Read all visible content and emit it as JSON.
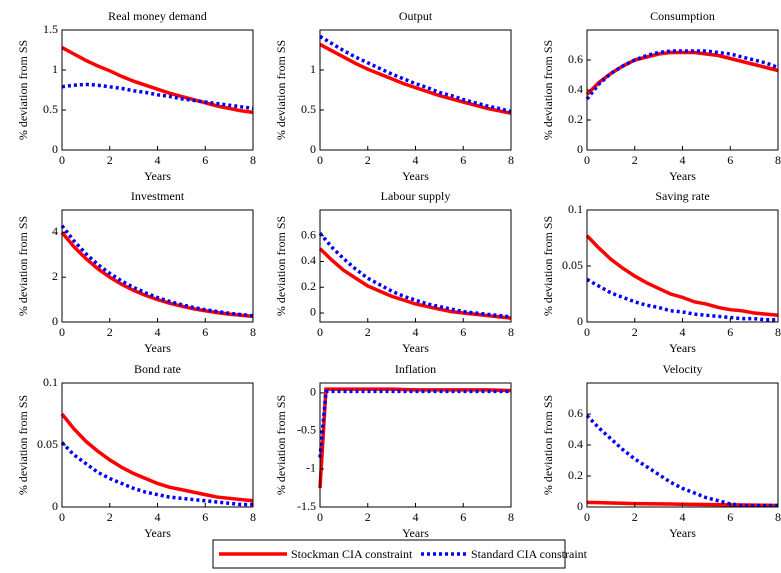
{
  "chart_data": [
    {
      "type": "line",
      "title": "Real money demand",
      "xlabel": "Years",
      "ylabel": "% deviation from SS",
      "x": [
        0,
        0.5,
        1,
        1.5,
        2,
        2.5,
        3,
        3.5,
        4,
        4.5,
        5,
        5.5,
        6,
        6.5,
        7,
        7.5,
        8
      ],
      "xlim": [
        0,
        8
      ],
      "xticks": [
        0,
        2,
        4,
        6,
        8
      ],
      "ylim": [
        0,
        1.5
      ],
      "yticks": [
        0,
        0.5,
        1,
        1.5
      ],
      "series": [
        {
          "name": "Stockman CIA constraint",
          "color": "#ff0000",
          "values": [
            1.28,
            1.2,
            1.12,
            1.05,
            0.99,
            0.92,
            0.86,
            0.81,
            0.76,
            0.71,
            0.67,
            0.63,
            0.59,
            0.55,
            0.52,
            0.49,
            0.47
          ]
        },
        {
          "name": "Standard CIA constraint",
          "color": "#0000ff",
          "values": [
            0.79,
            0.81,
            0.82,
            0.81,
            0.79,
            0.77,
            0.74,
            0.72,
            0.69,
            0.67,
            0.64,
            0.62,
            0.6,
            0.58,
            0.56,
            0.54,
            0.52
          ]
        }
      ]
    },
    {
      "type": "line",
      "title": "Output",
      "xlabel": "Years",
      "ylabel": "% deviation from SS",
      "x": [
        0,
        0.5,
        1,
        1.5,
        2,
        2.5,
        3,
        3.5,
        4,
        4.5,
        5,
        5.5,
        6,
        6.5,
        7,
        7.5,
        8
      ],
      "xlim": [
        0,
        8
      ],
      "xticks": [
        0,
        2,
        4,
        6,
        8
      ],
      "ylim": [
        0,
        1.5
      ],
      "yticks": [
        0,
        0.5,
        1
      ],
      "series": [
        {
          "color": "#ff0000",
          "values": [
            1.32,
            1.24,
            1.16,
            1.08,
            1.01,
            0.95,
            0.89,
            0.83,
            0.78,
            0.73,
            0.68,
            0.64,
            0.6,
            0.56,
            0.52,
            0.49,
            0.46
          ]
        },
        {
          "color": "#0000ff",
          "values": [
            1.42,
            1.33,
            1.24,
            1.16,
            1.09,
            1.02,
            0.95,
            0.89,
            0.83,
            0.78,
            0.72,
            0.68,
            0.63,
            0.59,
            0.55,
            0.52,
            0.48
          ]
        }
      ]
    },
    {
      "type": "line",
      "title": "Consumption",
      "xlabel": "Years",
      "ylabel": "% deviation from SS",
      "x": [
        0,
        0.5,
        1,
        1.5,
        2,
        2.5,
        3,
        3.5,
        4,
        4.5,
        5,
        5.5,
        6,
        6.5,
        7,
        7.5,
        8
      ],
      "xlim": [
        0,
        8
      ],
      "xticks": [
        0,
        2,
        4,
        6,
        8
      ],
      "ylim": [
        0,
        0.8
      ],
      "yticks": [
        0,
        0.2,
        0.4,
        0.6
      ],
      "series": [
        {
          "color": "#ff0000",
          "values": [
            0.37,
            0.45,
            0.51,
            0.56,
            0.6,
            0.62,
            0.64,
            0.65,
            0.65,
            0.65,
            0.64,
            0.63,
            0.61,
            0.59,
            0.57,
            0.55,
            0.53
          ]
        },
        {
          "color": "#0000ff",
          "values": [
            0.34,
            0.44,
            0.51,
            0.56,
            0.6,
            0.63,
            0.65,
            0.66,
            0.66,
            0.66,
            0.66,
            0.65,
            0.64,
            0.62,
            0.6,
            0.58,
            0.55
          ]
        }
      ]
    },
    {
      "type": "line",
      "title": "Investment",
      "xlabel": "Years",
      "ylabel": "% deviation from SS",
      "x": [
        0,
        0.5,
        1,
        1.5,
        2,
        2.5,
        3,
        3.5,
        4,
        4.5,
        5,
        5.5,
        6,
        6.5,
        7,
        7.5,
        8
      ],
      "xlim": [
        0,
        8
      ],
      "xticks": [
        0,
        2,
        4,
        6,
        8
      ],
      "ylim": [
        0,
        5
      ],
      "yticks": [
        0,
        2,
        4
      ],
      "series": [
        {
          "color": "#ff0000",
          "values": [
            4.0,
            3.36,
            2.83,
            2.38,
            2.0,
            1.68,
            1.41,
            1.19,
            1.0,
            0.84,
            0.71,
            0.59,
            0.5,
            0.42,
            0.35,
            0.3,
            0.25
          ]
        },
        {
          "color": "#0000ff",
          "values": [
            4.3,
            3.62,
            3.05,
            2.57,
            2.17,
            1.83,
            1.54,
            1.3,
            1.09,
            0.92,
            0.78,
            0.65,
            0.55,
            0.47,
            0.39,
            0.33,
            0.28
          ]
        }
      ]
    },
    {
      "type": "line",
      "title": "Labour supply",
      "xlabel": "Years",
      "ylabel": "% deviation from SS",
      "x": [
        0,
        0.5,
        1,
        1.5,
        2,
        2.5,
        3,
        3.5,
        4,
        4.5,
        5,
        5.5,
        6,
        6.5,
        7,
        7.5,
        8
      ],
      "xlim": [
        0,
        8
      ],
      "xticks": [
        0,
        2,
        4,
        6,
        8
      ],
      "ylim": [
        -0.07,
        0.8
      ],
      "yticks": [
        0,
        0.2,
        0.4,
        0.6
      ],
      "series": [
        {
          "color": "#ff0000",
          "values": [
            0.5,
            0.41,
            0.33,
            0.27,
            0.21,
            0.17,
            0.13,
            0.1,
            0.07,
            0.05,
            0.03,
            0.01,
            0.0,
            -0.01,
            -0.02,
            -0.03,
            -0.04
          ]
        },
        {
          "color": "#0000ff",
          "values": [
            0.62,
            0.51,
            0.42,
            0.34,
            0.27,
            0.22,
            0.17,
            0.13,
            0.1,
            0.07,
            0.05,
            0.03,
            0.01,
            0.0,
            -0.01,
            -0.02,
            -0.03
          ]
        }
      ]
    },
    {
      "type": "line",
      "title": "Saving rate",
      "xlabel": "Years",
      "ylabel": "% deviation from SS",
      "x": [
        0,
        0.5,
        1,
        1.5,
        2,
        2.5,
        3,
        3.5,
        4,
        4.5,
        5,
        5.5,
        6,
        6.5,
        7,
        7.5,
        8
      ],
      "xlim": [
        0,
        8
      ],
      "xticks": [
        0,
        2,
        4,
        6,
        8
      ],
      "ylim": [
        0,
        0.1
      ],
      "yticks": [
        0,
        0.05,
        0.1
      ],
      "series": [
        {
          "color": "#ff0000",
          "values": [
            0.077,
            0.066,
            0.056,
            0.048,
            0.041,
            0.035,
            0.03,
            0.025,
            0.022,
            0.018,
            0.016,
            0.013,
            0.011,
            0.01,
            0.008,
            0.007,
            0.006
          ]
        },
        {
          "color": "#0000ff",
          "values": [
            0.038,
            0.032,
            0.026,
            0.022,
            0.018,
            0.015,
            0.013,
            0.01,
            0.009,
            0.007,
            0.006,
            0.005,
            0.004,
            0.003,
            0.003,
            0.002,
            0.002
          ]
        }
      ]
    },
    {
      "type": "line",
      "title": "Bond rate",
      "xlabel": "Years",
      "ylabel": "% deviation from SS",
      "x": [
        0,
        0.5,
        1,
        1.5,
        2,
        2.5,
        3,
        3.5,
        4,
        4.5,
        5,
        5.5,
        6,
        6.5,
        7,
        7.5,
        8
      ],
      "xlim": [
        0,
        8
      ],
      "xticks": [
        0,
        2,
        4,
        6,
        8
      ],
      "ylim": [
        0,
        0.1
      ],
      "yticks": [
        0,
        0.05,
        0.1
      ],
      "series": [
        {
          "color": "#ff0000",
          "values": [
            0.075,
            0.063,
            0.053,
            0.045,
            0.038,
            0.032,
            0.027,
            0.023,
            0.019,
            0.016,
            0.014,
            0.012,
            0.01,
            0.008,
            0.007,
            0.006,
            0.005
          ]
        },
        {
          "color": "#0000ff",
          "values": [
            0.052,
            0.042,
            0.035,
            0.028,
            0.023,
            0.019,
            0.015,
            0.012,
            0.01,
            0.008,
            0.007,
            0.006,
            0.005,
            0.004,
            0.003,
            0.002,
            0.002
          ]
        }
      ]
    },
    {
      "type": "line",
      "title": "Inflation",
      "xlabel": "Years",
      "ylabel": "% deviation from SS",
      "x": [
        0,
        0.25,
        1,
        2,
        3,
        4,
        5,
        6,
        7,
        8
      ],
      "xlim": [
        0,
        8
      ],
      "xticks": [
        0,
        2,
        4,
        6,
        8
      ],
      "ylim": [
        -1.5,
        0.13
      ],
      "yticks": [
        -1.5,
        -1,
        -0.5,
        0
      ],
      "series": [
        {
          "color": "#ff0000",
          "values": [
            -1.25,
            0.05,
            0.05,
            0.05,
            0.05,
            0.04,
            0.04,
            0.04,
            0.04,
            0.03
          ]
        },
        {
          "color": "#0000ff",
          "values": [
            -0.85,
            0.02,
            0.02,
            0.02,
            0.02,
            0.02,
            0.02,
            0.02,
            0.02,
            0.02
          ]
        }
      ]
    },
    {
      "type": "line",
      "title": "Velocity",
      "xlabel": "Years",
      "ylabel": "% deviation from SS",
      "x": [
        0,
        0.5,
        1,
        1.5,
        2,
        2.5,
        3,
        3.5,
        4,
        4.5,
        5,
        5.5,
        6,
        6.5,
        7,
        7.5,
        8
      ],
      "xlim": [
        0,
        8
      ],
      "xticks": [
        0,
        2,
        4,
        6,
        8
      ],
      "ylim": [
        0,
        0.8
      ],
      "yticks": [
        0,
        0.2,
        0.4,
        0.6
      ],
      "series": [
        {
          "color": "#ff0000",
          "values": [
            0.03,
            0.028,
            0.026,
            0.024,
            0.022,
            0.021,
            0.02,
            0.019,
            0.018,
            0.017,
            0.016,
            0.015,
            0.014,
            0.013,
            0.012,
            0.011,
            0.01
          ]
        },
        {
          "color": "#0000ff",
          "values": [
            0.59,
            0.51,
            0.44,
            0.37,
            0.31,
            0.26,
            0.21,
            0.16,
            0.12,
            0.09,
            0.06,
            0.04,
            0.02,
            0.01,
            0.01,
            0.01,
            0.01
          ]
        }
      ]
    }
  ]
}
